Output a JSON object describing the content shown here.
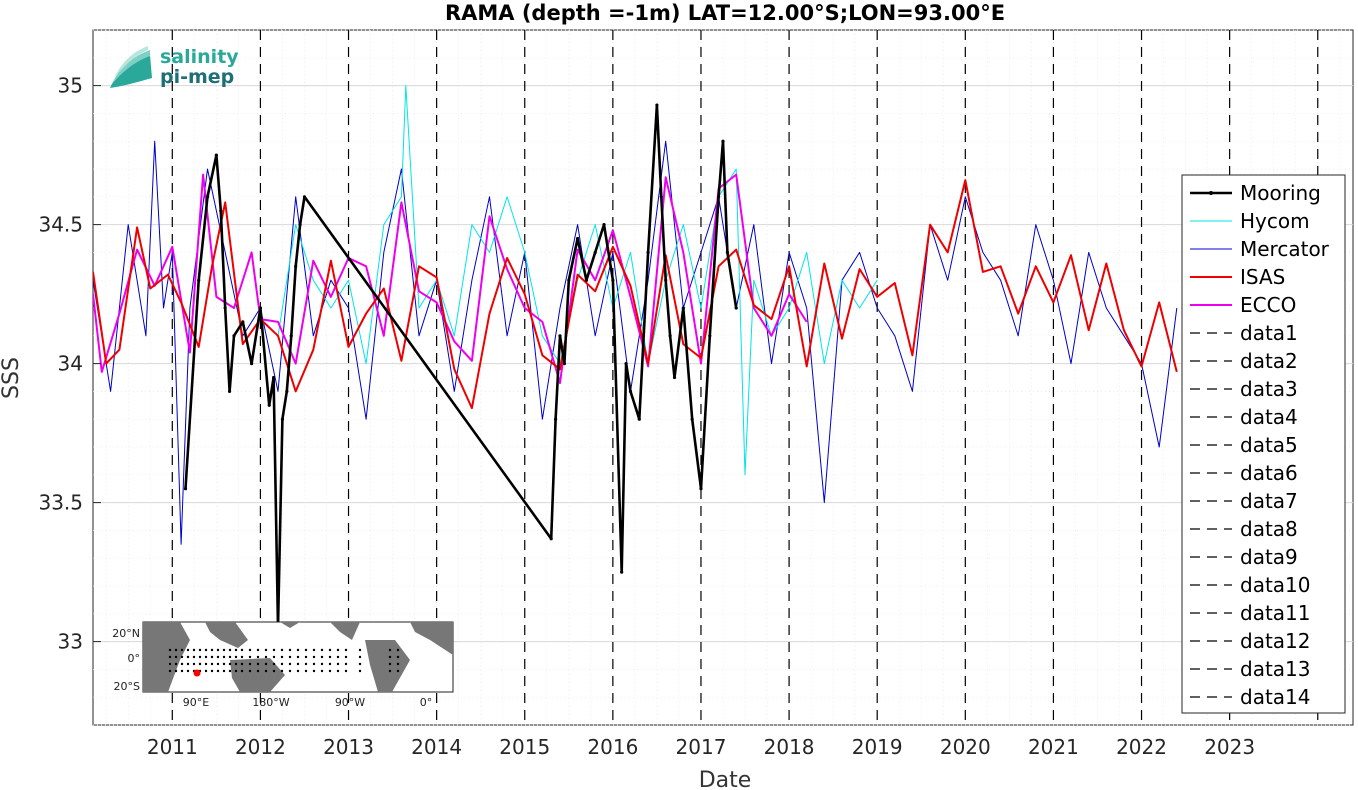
{
  "chart_data": {
    "type": "line",
    "title": "RAMA (depth =-1m) LAT=12.00°S;LON=93.00°E",
    "xlabel": "Date",
    "ylabel": "SSS",
    "xlim": [
      2010.1,
      2024.4
    ],
    "ylim": [
      32.7,
      35.2
    ],
    "x_ticks": [
      "2011",
      "2012",
      "2013",
      "2014",
      "2015",
      "2016",
      "2017",
      "2018",
      "2019",
      "2020",
      "2021",
      "2022",
      "2023"
    ],
    "y_ticks": [
      "33",
      "33.5",
      "34",
      "34.5",
      "35"
    ],
    "grid": true,
    "legend_position": "right",
    "vertical_dashed_lines_x": [
      2011.0,
      2012.0,
      2013.0,
      2014.0,
      2015.0,
      2016.0,
      2017.0,
      2018.0,
      2019.0,
      2020.0,
      2021.0,
      2022.0,
      2023.0,
      2024.0
    ],
    "series": [
      {
        "name": "Mooring",
        "color": "#000000",
        "style": "solid-marker",
        "x": [
          2011.15,
          2011.3,
          2011.4,
          2011.5,
          2011.55,
          2011.6,
          2011.65,
          2011.7,
          2011.8,
          2011.9,
          2012.0,
          2012.1,
          2012.15,
          2012.2,
          2012.25,
          2012.3,
          2012.35,
          2012.4,
          2012.45,
          2012.5,
          2015.3,
          2015.35,
          2015.4,
          2015.45,
          2015.5,
          2015.6,
          2015.7,
          2015.8,
          2015.9,
          2016.0,
          2016.1,
          2016.15,
          2016.2,
          2016.3,
          2016.4,
          2016.5,
          2016.55,
          2016.6,
          2016.65,
          2016.7,
          2016.8,
          2016.9,
          2017.0,
          2017.1,
          2017.2,
          2017.25,
          2017.3,
          2017.4
        ],
        "y": [
          33.55,
          34.3,
          34.6,
          34.75,
          34.55,
          34.2,
          33.9,
          34.1,
          34.15,
          34.0,
          34.2,
          33.85,
          33.95,
          33.05,
          33.8,
          33.9,
          34.1,
          34.35,
          34.5,
          34.6,
          33.37,
          33.8,
          34.1,
          34.0,
          34.3,
          34.45,
          34.3,
          34.4,
          34.5,
          34.3,
          33.25,
          34.0,
          33.9,
          33.8,
          34.4,
          34.93,
          34.6,
          34.3,
          34.1,
          33.95,
          34.2,
          33.8,
          33.55,
          34.1,
          34.6,
          34.8,
          34.4,
          34.2
        ]
      },
      {
        "name": "Hycom",
        "color": "#00e5e5",
        "style": "solid",
        "x": [
          2012.2,
          2012.4,
          2012.6,
          2012.8,
          2013.0,
          2013.2,
          2013.4,
          2013.6,
          2013.65,
          2013.8,
          2014.0,
          2014.2,
          2014.4,
          2014.6,
          2014.8,
          2015.0,
          2015.2,
          2015.4,
          2015.6,
          2015.8,
          2016.0,
          2016.2,
          2016.4,
          2016.6,
          2016.8,
          2017.0,
          2017.2,
          2017.4,
          2017.5,
          2017.6,
          2017.8,
          2018.0,
          2018.2,
          2018.4,
          2018.6,
          2018.8,
          2019.0
        ],
        "y": [
          34.1,
          34.5,
          34.3,
          34.2,
          34.3,
          34.0,
          34.5,
          34.6,
          35.0,
          34.2,
          34.3,
          34.1,
          34.5,
          34.4,
          34.6,
          34.4,
          34.1,
          34.0,
          34.3,
          34.5,
          34.2,
          34.4,
          34.0,
          34.3,
          34.5,
          34.2,
          34.6,
          34.7,
          33.6,
          34.3,
          34.1,
          34.2,
          34.4,
          34.0,
          34.3,
          34.2,
          34.3
        ]
      },
      {
        "name": "Mercator",
        "color": "#0000cc",
        "style": "solid",
        "x": [
          2010.1,
          2010.3,
          2010.5,
          2010.7,
          2010.8,
          2010.9,
          2011.0,
          2011.1,
          2011.2,
          2011.4,
          2011.6,
          2011.8,
          2012.0,
          2012.2,
          2012.4,
          2012.6,
          2012.8,
          2013.0,
          2013.2,
          2013.4,
          2013.6,
          2013.8,
          2014.0,
          2014.2,
          2014.4,
          2014.6,
          2014.8,
          2015.0,
          2015.2,
          2015.4,
          2015.6,
          2015.8,
          2016.0,
          2016.2,
          2016.4,
          2016.6,
          2016.8,
          2017.0,
          2017.2,
          2017.4,
          2017.6,
          2017.8,
          2018.0,
          2018.2,
          2018.4,
          2018.6,
          2018.8,
          2019.0,
          2019.2,
          2019.4,
          2019.6,
          2019.8,
          2020.0,
          2020.2,
          2020.4,
          2020.6,
          2020.8,
          2021.0,
          2021.2,
          2021.4,
          2021.6,
          2021.8,
          2022.0,
          2022.2,
          2022.4
        ],
        "y": [
          34.3,
          33.9,
          34.5,
          34.1,
          34.8,
          34.2,
          34.4,
          33.35,
          34.2,
          34.7,
          34.4,
          34.1,
          34.2,
          33.9,
          34.6,
          34.1,
          34.3,
          34.2,
          33.8,
          34.4,
          34.7,
          34.1,
          34.3,
          33.9,
          34.3,
          34.6,
          34.1,
          34.4,
          33.8,
          34.2,
          34.5,
          34.1,
          34.4,
          33.9,
          34.3,
          34.8,
          34.2,
          34.4,
          34.6,
          34.2,
          34.5,
          34.0,
          34.4,
          34.2,
          33.5,
          34.3,
          34.4,
          34.2,
          34.1,
          33.9,
          34.5,
          34.3,
          34.6,
          34.4,
          34.3,
          34.1,
          34.5,
          34.3,
          34.0,
          34.4,
          34.2,
          34.1,
          34.0,
          33.7,
          34.2
        ]
      },
      {
        "name": "ISAS",
        "color": "#ee0000",
        "style": "solid",
        "x": [
          2010.1,
          2010.25,
          2010.4,
          2010.6,
          2010.75,
          2010.95,
          2011.1,
          2011.3,
          2011.45,
          2011.6,
          2011.8,
          2012.0,
          2012.2,
          2012.4,
          2012.6,
          2012.8,
          2013.0,
          2013.2,
          2013.4,
          2013.6,
          2013.8,
          2014.0,
          2014.2,
          2014.4,
          2014.6,
          2014.8,
          2015.0,
          2015.2,
          2015.4,
          2015.6,
          2015.8,
          2016.0,
          2016.2,
          2016.4,
          2016.6,
          2016.8,
          2017.0,
          2017.2,
          2017.4,
          2017.6,
          2017.8,
          2018.0,
          2018.2,
          2018.4,
          2018.6,
          2018.8,
          2019.0,
          2019.2,
          2019.4,
          2019.6,
          2019.8,
          2020.0,
          2020.2,
          2020.4,
          2020.6,
          2020.8,
          2021.0,
          2021.2,
          2021.4,
          2021.6,
          2021.8,
          2022.0,
          2022.2,
          2022.4
        ],
        "y": [
          34.33,
          34.0,
          34.05,
          34.49,
          34.27,
          34.32,
          34.22,
          34.06,
          34.35,
          34.58,
          34.07,
          34.16,
          34.1,
          33.9,
          34.05,
          34.37,
          34.06,
          34.18,
          34.27,
          34.01,
          34.35,
          34.31,
          33.98,
          33.84,
          34.18,
          34.38,
          34.25,
          34.03,
          33.98,
          34.32,
          34.26,
          34.42,
          34.28,
          34.0,
          34.39,
          34.07,
          34.02,
          34.35,
          34.41,
          34.21,
          34.16,
          34.35,
          33.99,
          34.36,
          34.09,
          34.34,
          34.24,
          34.29,
          34.03,
          34.5,
          34.4,
          34.66,
          34.33,
          34.35,
          34.18,
          34.35,
          34.22,
          34.39,
          34.12,
          34.36,
          34.12,
          33.99,
          34.22,
          33.97
        ]
      },
      {
        "name": "ECCO",
        "color": "#ee00ee",
        "style": "solid",
        "x": [
          2010.1,
          2010.2,
          2010.4,
          2010.6,
          2010.8,
          2011.0,
          2011.2,
          2011.35,
          2011.5,
          2011.7,
          2011.9,
          2012.0,
          2012.2,
          2012.4,
          2012.6,
          2012.8,
          2013.0,
          2013.2,
          2013.4,
          2013.6,
          2013.8,
          2014.0,
          2014.2,
          2014.4,
          2014.6,
          2014.8,
          2015.0,
          2015.2,
          2015.4,
          2015.6,
          2015.8,
          2016.0,
          2016.2,
          2016.4,
          2016.6,
          2016.8,
          2017.0,
          2017.2,
          2017.4,
          2017.6,
          2017.8,
          2018.0,
          2018.2
        ],
        "y": [
          34.25,
          33.97,
          34.18,
          34.41,
          34.28,
          34.42,
          34.04,
          34.68,
          34.24,
          34.2,
          34.4,
          34.16,
          34.15,
          34.0,
          34.37,
          34.24,
          34.38,
          34.35,
          34.1,
          34.58,
          34.26,
          34.22,
          34.08,
          34.01,
          34.53,
          34.34,
          34.2,
          34.15,
          33.93,
          34.41,
          34.3,
          34.48,
          34.24,
          33.99,
          34.67,
          34.4,
          34.0,
          34.63,
          34.68,
          34.2,
          34.1,
          34.25,
          34.15
        ]
      }
    ],
    "legend": [
      "Mooring",
      "Hycom",
      "Mercator",
      "ISAS",
      "ECCO",
      "data1",
      "data2",
      "data3",
      "data4",
      "data5",
      "data6",
      "data7",
      "data8",
      "data9",
      "data10",
      "data11",
      "data12",
      "data13",
      "data14"
    ]
  },
  "logo": {
    "line1": "salinity",
    "line2": "pi-mep"
  },
  "inset_map": {
    "y_labels": [
      "20°N",
      "0°",
      "20°S"
    ],
    "x_labels": [
      "90°E",
      "180°W",
      "90°W",
      "0°"
    ]
  }
}
